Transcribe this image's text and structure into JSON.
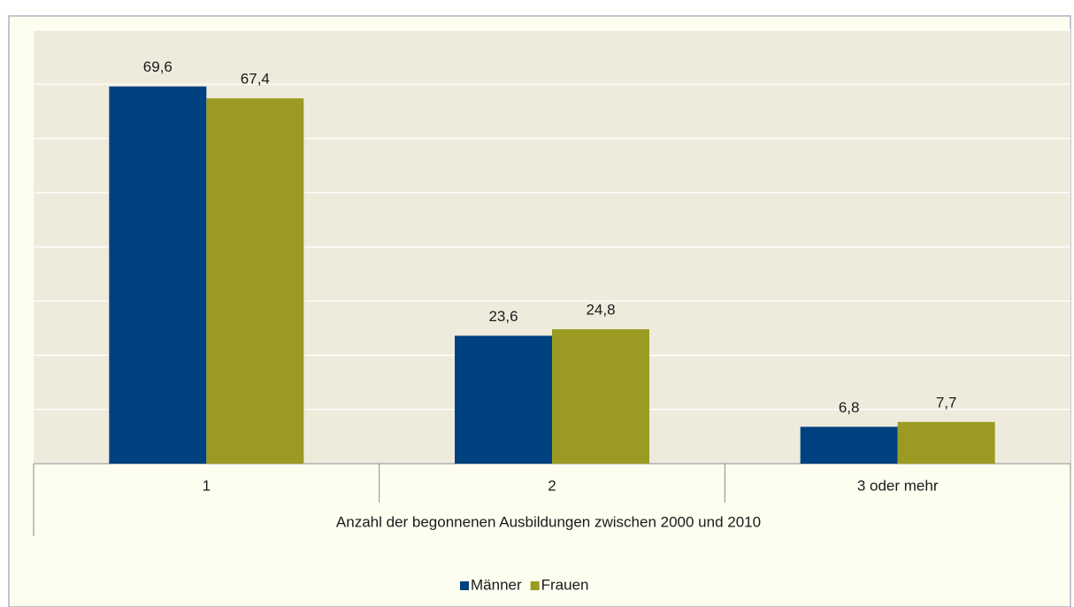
{
  "chart_data": {
    "type": "bar",
    "categories": [
      "1",
      "2",
      "3 oder mehr"
    ],
    "x_label": "Anzahl der begonnenen Ausbildungen zwischen 2000 und 2010",
    "series": [
      {
        "name": "Männer",
        "color": "#00417f",
        "values": [
          69.6,
          23.6,
          6.8
        ],
        "value_labels": [
          "69,6",
          "23,6",
          "6,8"
        ]
      },
      {
        "name": "Frauen",
        "color": "#9b9b23",
        "values": [
          67.4,
          24.8,
          7.7
        ],
        "value_labels": [
          "67,4",
          "24,8",
          "7,7"
        ]
      }
    ],
    "ylim": [
      0,
      80
    ],
    "yticks": [
      0,
      10,
      20,
      30,
      40,
      50,
      60,
      70,
      80
    ],
    "grid": true,
    "legend": "bottom"
  }
}
